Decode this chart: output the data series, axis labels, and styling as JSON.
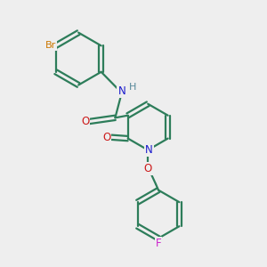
{
  "background_color": "#eeeeee",
  "bond_color": "#2d7d5a",
  "bond_width": 1.6,
  "atom_colors": {
    "Br": "#cc7700",
    "N": "#1a1acc",
    "O": "#cc1a1a",
    "F": "#cc22cc",
    "H": "#558899",
    "C": "#2d7d5a"
  }
}
